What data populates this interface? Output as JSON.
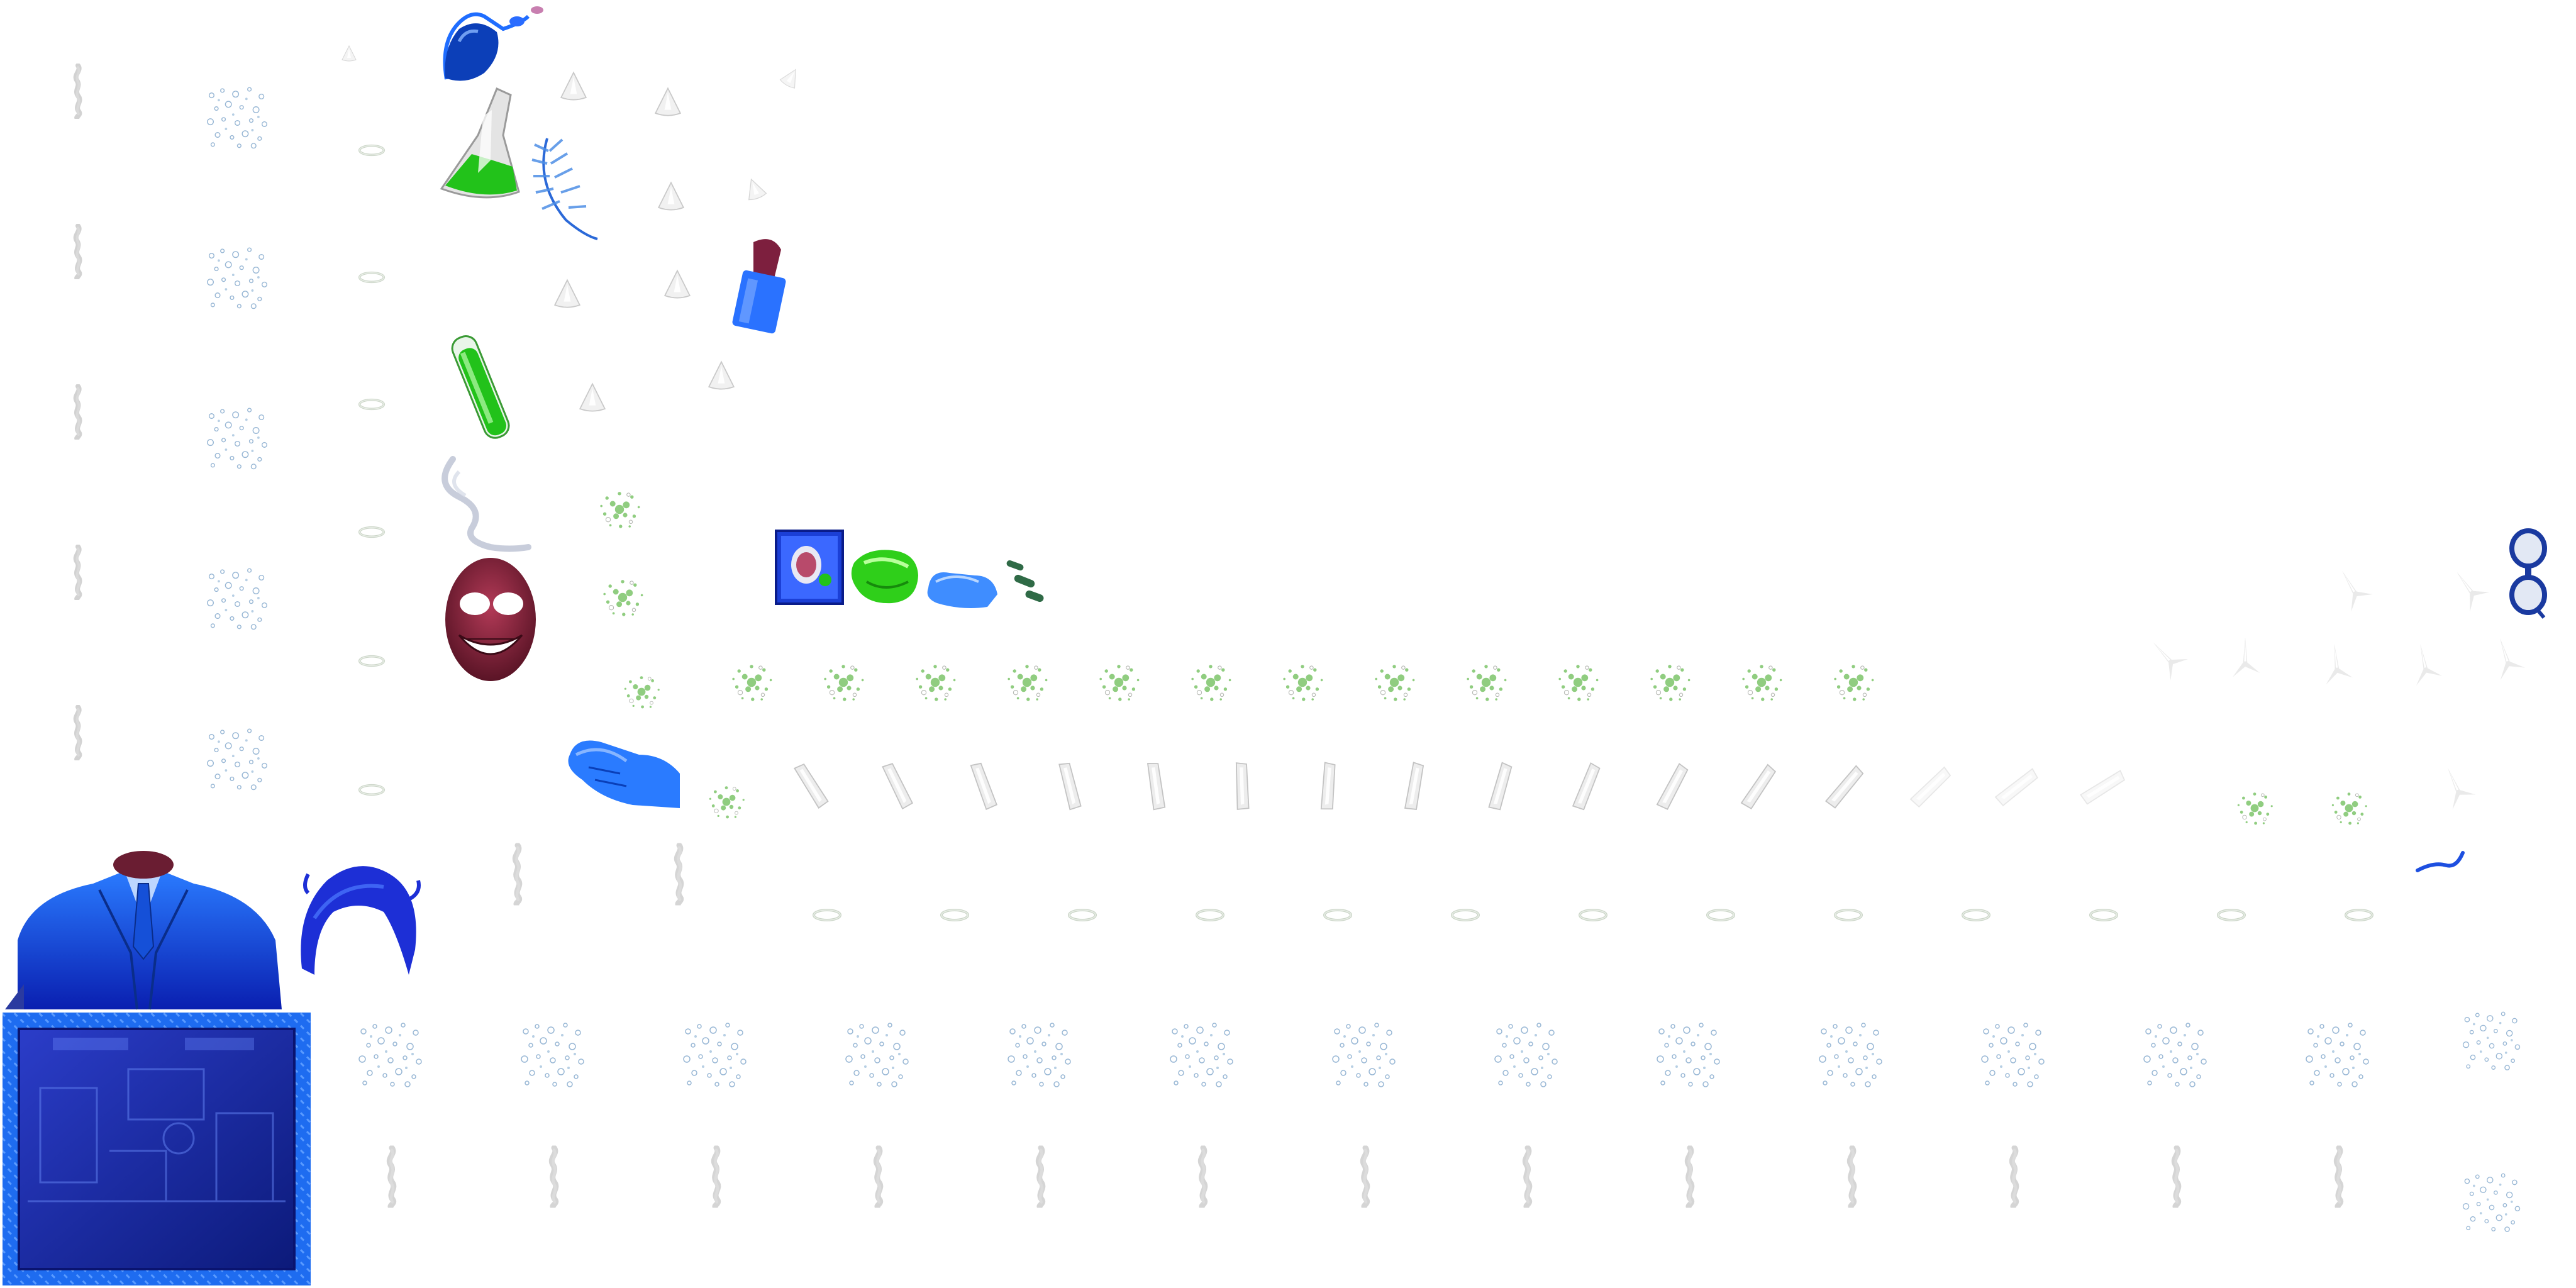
{
  "atlas": {
    "type": "sprite-sheet",
    "theme": "mad scientist laboratory",
    "background": "#ffffff"
  },
  "palette": {
    "coat_blue": "#1a5cff",
    "deep_blue": "#0a1fb0",
    "acid_green": "#33d11a",
    "skin_maroon": "#7a2038",
    "smoke_grey": "#b9b9b9",
    "bubble_blue": "#7aa2c8",
    "splash_green": "#6fbf5a",
    "glass_grey": "#d6d6d6"
  },
  "sprites": [
    {
      "name": "scientist-body-sprite",
      "frames": 1
    },
    {
      "name": "scientist-hair-sprite",
      "frames": 1
    },
    {
      "name": "scientist-face-sprite",
      "frames": 1
    },
    {
      "name": "laboratory-frame-sprite",
      "frames": 1
    },
    {
      "name": "scientist-symbol-tile",
      "frames": 1
    },
    {
      "name": "conical-flask-sprite",
      "frames": 1
    },
    {
      "name": "round-flask-sprite",
      "frames": 1
    },
    {
      "name": "test-tube-sprite",
      "frames": 1
    },
    {
      "name": "blue-glove-sprite",
      "frames": 2
    },
    {
      "name": "green-slime-sprite",
      "frames": 1
    },
    {
      "name": "feather-sprite",
      "frames": 1
    },
    {
      "name": "goggles-sprite",
      "frames": 1
    },
    {
      "name": "lipstick-sprite",
      "frames": 1
    },
    {
      "name": "smoke-frame",
      "frames": 20
    },
    {
      "name": "bubbles-frame",
      "frames": 22
    },
    {
      "name": "ring-frame",
      "frames": 19
    },
    {
      "name": "green-splash-frame",
      "frames": 17
    },
    {
      "name": "glass-shard-frame",
      "frames": 16
    },
    {
      "name": "glint-frame",
      "frames": 12
    }
  ]
}
